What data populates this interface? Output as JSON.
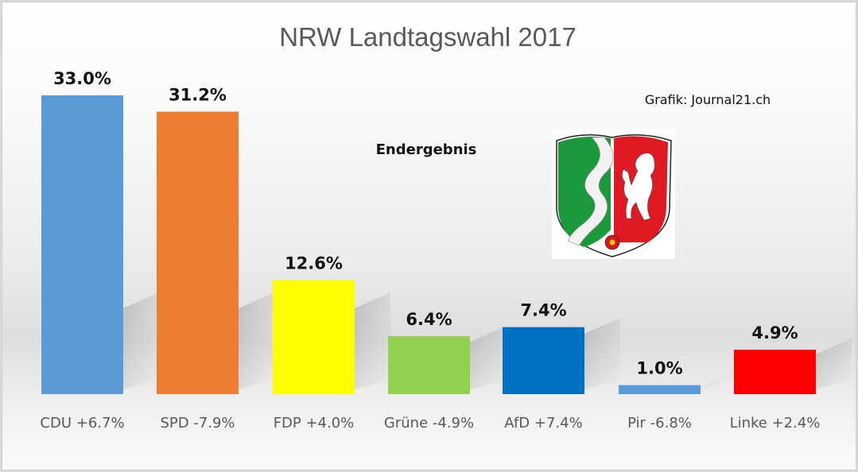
{
  "chart_data": {
    "type": "bar",
    "title": "NRW Landtagswahl 2017",
    "subtitle": "Endergebnis",
    "credit": "Grafik: Journal21.ch",
    "categories": [
      "CDU +6.7%",
      "SPD -7.9%",
      "FDP +4.0%",
      "Grüne -4.9%",
      "AfD +7.4%",
      "Pir -6.8%",
      "Linke +2.4%"
    ],
    "parties": [
      "CDU",
      "SPD",
      "FDP",
      "Grüne",
      "AfD",
      "Pir",
      "Linke"
    ],
    "change": [
      6.7,
      -7.9,
      4.0,
      -4.9,
      7.4,
      -6.8,
      2.4
    ],
    "values": [
      33.0,
      31.2,
      12.6,
      6.4,
      7.4,
      1.0,
      4.9
    ],
    "value_labels": [
      "33.0%",
      "31.2%",
      "12.6%",
      "6.4%",
      "7.4%",
      "1.0%",
      "4.9%"
    ],
    "colors": [
      "#5b9bd5",
      "#ed7d31",
      "#ffff00",
      "#92d050",
      "#0070c0",
      "#5b9bd5",
      "#ff0000"
    ],
    "xlabel": "",
    "ylabel": "",
    "ylim": [
      0,
      33
    ],
    "grid": false,
    "legend": "none",
    "annotations": [
      "Endergebnis",
      "Grafik: Journal21.ch"
    ],
    "image": "nrw-coat-of-arms"
  }
}
